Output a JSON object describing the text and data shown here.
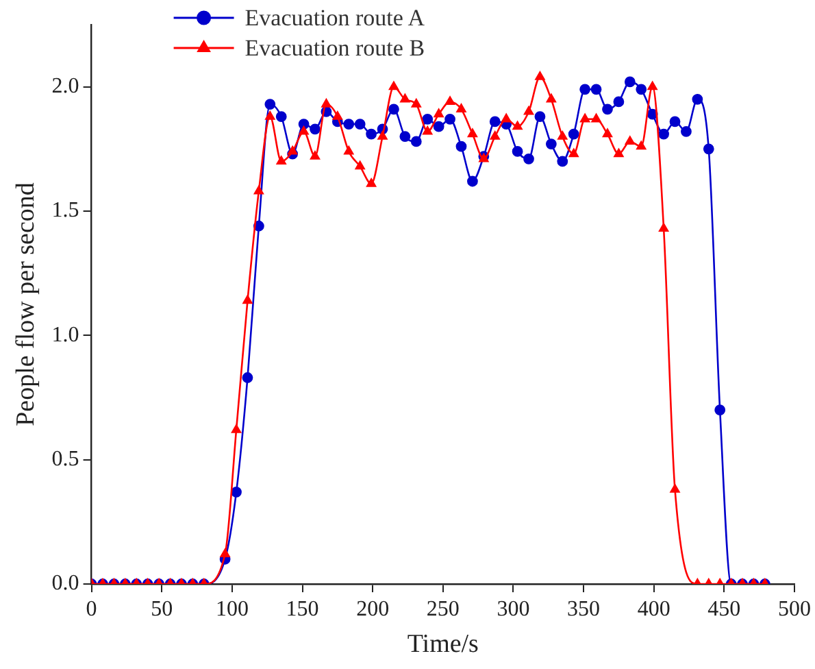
{
  "chart_data": {
    "type": "line",
    "xlabel": "Time/s",
    "ylabel": "People flow per second",
    "xlim": [
      0,
      500
    ],
    "xticks": [
      0,
      50,
      100,
      150,
      200,
      250,
      300,
      350,
      400,
      450,
      500
    ],
    "ylim": [
      0,
      2.25
    ],
    "yticks": [
      {
        "value": 0,
        "label": "0.0"
      },
      {
        "value": 0.5,
        "label": "0.5"
      },
      {
        "value": 1,
        "label": "1.0"
      },
      {
        "value": 1.5,
        "label": "1.5"
      },
      {
        "value": 2,
        "label": "2.0"
      }
    ],
    "grid": false,
    "legend": "top left",
    "series": [
      {
        "name": "Evacuation route A",
        "color": "#0000cc",
        "marker": "circle",
        "x": [
          0,
          8,
          16,
          24,
          32,
          40,
          48,
          56,
          64,
          72,
          80,
          95,
          103,
          111,
          119,
          127,
          135,
          143,
          151,
          159,
          167,
          175,
          183,
          191,
          199,
          207,
          215,
          223,
          231,
          239,
          247,
          255,
          263,
          271,
          279,
          287,
          295,
          303,
          311,
          319,
          327,
          335,
          343,
          351,
          359,
          367,
          375,
          383,
          391,
          399,
          407,
          415,
          423,
          431,
          439,
          447,
          455,
          463,
          471,
          479
        ],
        "values": [
          0,
          0,
          0,
          0,
          0,
          0,
          0,
          0,
          0,
          0,
          0,
          0.1,
          0.37,
          0.83,
          1.44,
          1.93,
          1.88,
          1.73,
          1.85,
          1.83,
          1.9,
          1.86,
          1.85,
          1.85,
          1.81,
          1.83,
          1.91,
          1.8,
          1.78,
          1.87,
          1.84,
          1.87,
          1.76,
          1.62,
          1.72,
          1.86,
          1.85,
          1.74,
          1.71,
          1.88,
          1.77,
          1.7,
          1.81,
          1.99,
          1.99,
          1.91,
          1.94,
          2.02,
          1.99,
          1.89,
          1.81,
          1.86,
          1.82,
          1.95,
          1.75,
          0.7,
          0,
          0,
          0,
          0
        ]
      },
      {
        "name": "Evacuation route B",
        "color": "#ff0000",
        "marker": "triangle",
        "x": [
          0,
          8,
          16,
          24,
          32,
          40,
          48,
          56,
          64,
          72,
          80,
          95,
          103,
          111,
          119,
          127,
          135,
          143,
          151,
          159,
          167,
          175,
          183,
          191,
          199,
          207,
          215,
          223,
          231,
          239,
          247,
          255,
          263,
          271,
          279,
          287,
          295,
          303,
          311,
          319,
          327,
          335,
          343,
          351,
          359,
          367,
          375,
          383,
          391,
          399,
          407,
          415,
          431,
          439,
          447,
          455,
          463,
          471,
          479
        ],
        "values": [
          0,
          0,
          0,
          0,
          0,
          0,
          0,
          0,
          0,
          0,
          0,
          0.12,
          0.62,
          1.14,
          1.58,
          1.88,
          1.7,
          1.74,
          1.82,
          1.72,
          1.93,
          1.88,
          1.74,
          1.68,
          1.61,
          1.8,
          2.0,
          1.95,
          1.93,
          1.82,
          1.89,
          1.94,
          1.91,
          1.81,
          1.71,
          1.8,
          1.87,
          1.84,
          1.9,
          2.04,
          1.95,
          1.8,
          1.73,
          1.87,
          1.87,
          1.81,
          1.73,
          1.78,
          1.76,
          2.0,
          1.43,
          0.38,
          0,
          0,
          0,
          0,
          0,
          0,
          0
        ]
      }
    ]
  }
}
